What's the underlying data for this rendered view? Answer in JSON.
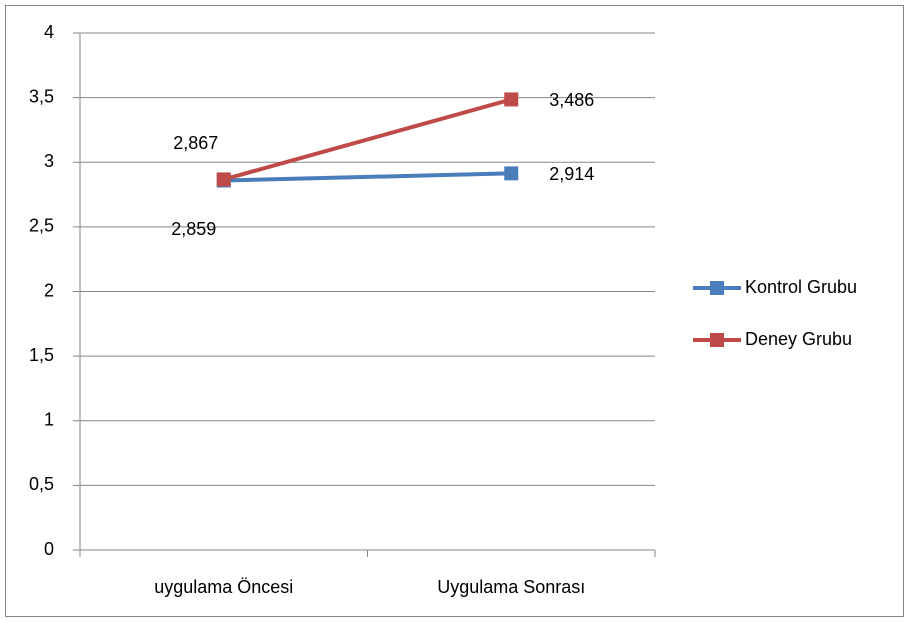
{
  "chart_data": {
    "type": "line",
    "categories": [
      "uygulama Öncesi",
      "Uygulama Sonrası"
    ],
    "series": [
      {
        "name": "Kontrol Grubu",
        "color": "#4a7ebb",
        "values": [
          2.859,
          2.914
        ],
        "value_labels": [
          "2,859",
          "2,914"
        ]
      },
      {
        "name": "Deney Grubu",
        "color": "#be4b48",
        "values": [
          2.867,
          3.486
        ],
        "value_labels": [
          "2,867",
          "3,486"
        ]
      }
    ],
    "ylim": [
      0,
      4
    ],
    "yticks": [
      0,
      {
        "value": 0.5,
        "label": "0,5"
      },
      1,
      {
        "value": 1.5,
        "label": "1,5"
      },
      2,
      {
        "value": 2.5,
        "label": "2,5"
      },
      3,
      {
        "value": 3.5,
        "label": "3,5"
      },
      4
    ],
    "grid": true,
    "legend": "right"
  }
}
